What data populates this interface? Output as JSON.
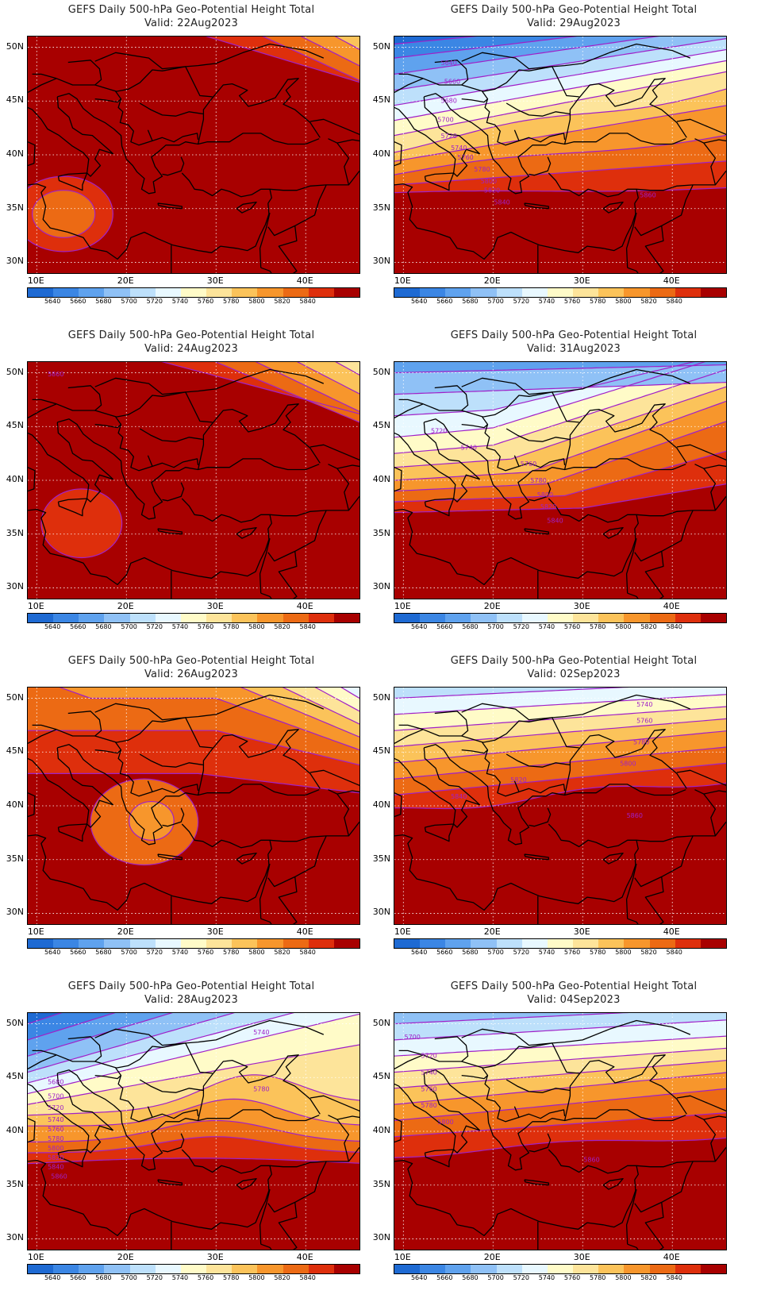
{
  "title": "GEFS Daily 500-hPa Geo-Potential Height Total",
  "valid_prefix": "Valid:",
  "lat_ticks": [
    "50N",
    "45N",
    "40N",
    "35N",
    "30N"
  ],
  "lon_ticks": [
    "10E",
    "20E",
    "30E",
    "40E"
  ],
  "colorbar": {
    "labels": [
      "5640",
      "5660",
      "5680",
      "5700",
      "5720",
      "5740",
      "5760",
      "5780",
      "5800",
      "5820",
      "5840"
    ],
    "colors": [
      "#1e6ad3",
      "#3b86e4",
      "#5fa2ee",
      "#8fc1f6",
      "#bde0fb",
      "#e8f8ff",
      "#fffbc8",
      "#fde49a",
      "#fbc35a",
      "#f7962c",
      "#ec6a14",
      "#de2f0c",
      "#a80000"
    ]
  },
  "panels": [
    {
      "valid": "22Aug2023",
      "contour_labels": []
    },
    {
      "valid": "29Aug2023",
      "contour_labels": [
        "5640",
        "5660",
        "5680",
        "5700",
        "5720",
        "5740",
        "5760",
        "5780",
        "5800",
        "5820",
        "5840",
        "5860"
      ]
    },
    {
      "valid": "24Aug2023",
      "contour_labels": [
        "5860"
      ]
    },
    {
      "valid": "31Aug2023",
      "contour_labels": [
        "5720",
        "5740",
        "5760",
        "5780",
        "5800",
        "5820",
        "5840"
      ]
    },
    {
      "valid": "26Aug2023",
      "contour_labels": []
    },
    {
      "valid": "02Sep2023",
      "contour_labels": [
        "5740",
        "5760",
        "5780",
        "5800",
        "5820",
        "5840",
        "5860"
      ]
    },
    {
      "valid": "28Aug2023",
      "contour_labels": [
        "5740",
        "5780",
        "5680",
        "5700",
        "5720",
        "5740",
        "5760",
        "5780",
        "5800",
        "5820",
        "5840",
        "5860"
      ]
    },
    {
      "valid": "04Sep2023",
      "contour_labels": [
        "5700",
        "5720",
        "5740",
        "5760",
        "5780",
        "5800",
        "5860"
      ]
    }
  ]
}
